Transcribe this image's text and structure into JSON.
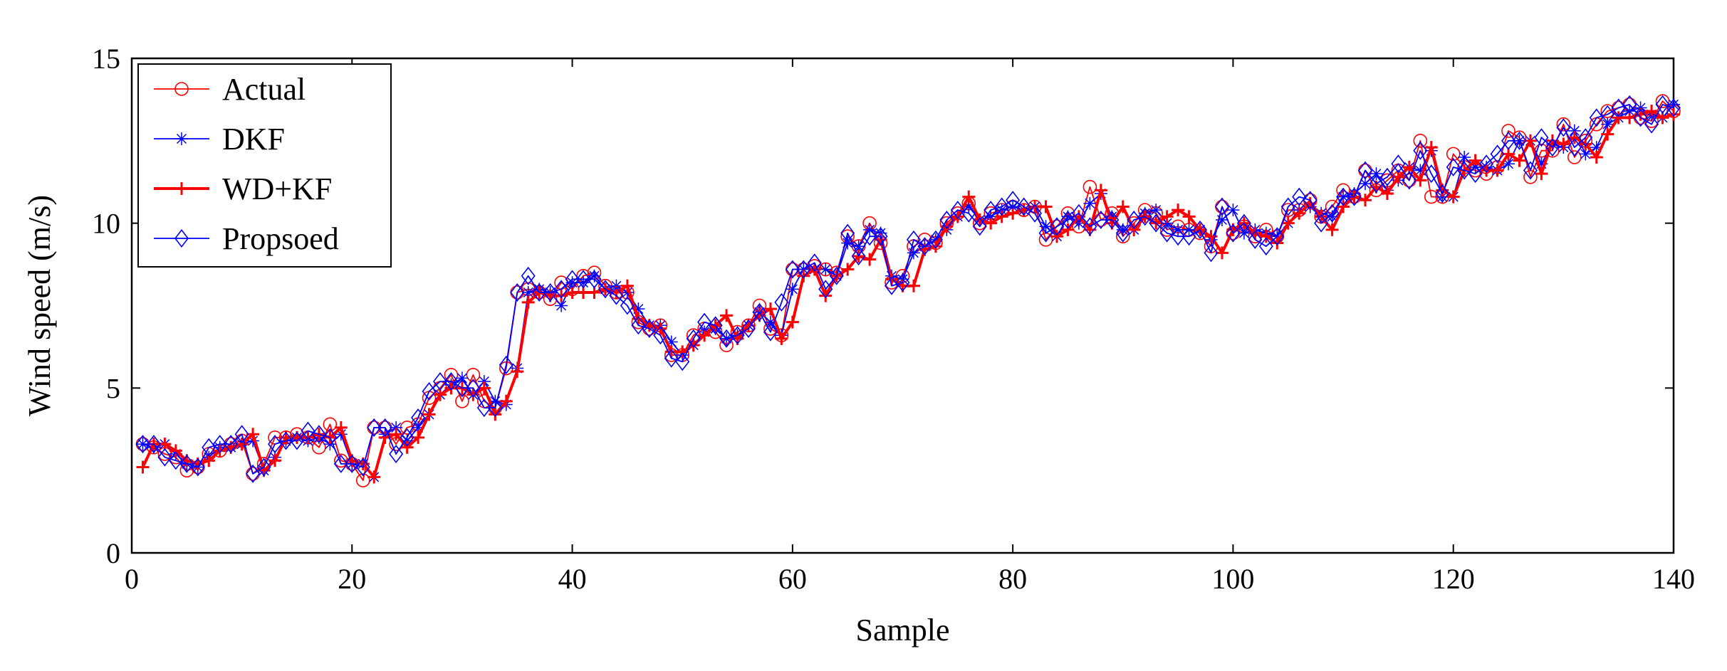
{
  "chart_data": {
    "type": "line",
    "title": "",
    "xlabel": "Sample",
    "ylabel": "Wind speed (m/s)",
    "xlim": [
      0,
      140
    ],
    "ylim": [
      0,
      15
    ],
    "x_ticks": [
      0,
      20,
      40,
      60,
      80,
      100,
      120,
      140
    ],
    "y_ticks": [
      0,
      5,
      10,
      15
    ],
    "grid": false,
    "legend_position": "top-left",
    "x": [
      1,
      2,
      3,
      4,
      5,
      6,
      7,
      8,
      9,
      10,
      11,
      12,
      13,
      14,
      15,
      16,
      17,
      18,
      19,
      20,
      21,
      22,
      23,
      24,
      25,
      26,
      27,
      28,
      29,
      30,
      31,
      32,
      33,
      34,
      35,
      36,
      37,
      38,
      39,
      40,
      41,
      42,
      43,
      44,
      45,
      46,
      47,
      48,
      49,
      50,
      51,
      52,
      53,
      54,
      55,
      56,
      57,
      58,
      59,
      60,
      61,
      62,
      63,
      64,
      65,
      66,
      67,
      68,
      69,
      70,
      71,
      72,
      73,
      74,
      75,
      76,
      77,
      78,
      79,
      80,
      81,
      82,
      83,
      84,
      85,
      86,
      87,
      88,
      89,
      90,
      91,
      92,
      93,
      94,
      95,
      96,
      97,
      98,
      99,
      100,
      101,
      102,
      103,
      104,
      105,
      106,
      107,
      108,
      109,
      110,
      111,
      112,
      113,
      114,
      115,
      116,
      117,
      118,
      119,
      120,
      121,
      122,
      123,
      124,
      125,
      126,
      127,
      128,
      129,
      130,
      131,
      132,
      133,
      134,
      135,
      136,
      137,
      138,
      139,
      140
    ],
    "series": [
      {
        "name": "Actual",
        "color": "#ff0000",
        "marker": "circle",
        "values": [
          3.3,
          3.2,
          3.0,
          2.9,
          2.5,
          2.6,
          3.0,
          3.1,
          3.3,
          3.4,
          2.4,
          2.7,
          3.5,
          3.5,
          3.6,
          3.5,
          3.2,
          3.9,
          2.8,
          2.7,
          2.2,
          3.8,
          3.8,
          3.3,
          3.8,
          3.9,
          4.7,
          5.0,
          5.4,
          4.6,
          5.4,
          4.6,
          4.4,
          5.6,
          7.9,
          8.0,
          7.9,
          7.7,
          8.2,
          8.0,
          8.4,
          8.5,
          8.1,
          7.9,
          7.9,
          7.0,
          6.8,
          6.9,
          6.0,
          6.0,
          6.6,
          6.8,
          6.7,
          6.3,
          6.7,
          6.9,
          7.5,
          6.8,
          6.6,
          8.6,
          8.6,
          8.7,
          8.6,
          8.5,
          9.6,
          9.3,
          10.0,
          9.4,
          8.2,
          8.4,
          9.3,
          9.5,
          9.4,
          10.0,
          10.3,
          10.6,
          10.0,
          10.3,
          10.4,
          10.5,
          10.4,
          10.5,
          9.5,
          9.9,
          10.3,
          9.9,
          11.1,
          10.1,
          10.3,
          9.6,
          10.0,
          10.4,
          10.3,
          9.8,
          9.9,
          9.8,
          9.7,
          9.3,
          10.5,
          9.7,
          9.9,
          9.6,
          9.8,
          9.6,
          10.4,
          10.4,
          10.7,
          10.2,
          10.5,
          11.0,
          10.8,
          11.6,
          11.0,
          11.3,
          11.6,
          11.3,
          12.5,
          10.8,
          10.8,
          12.1,
          11.7,
          11.6,
          11.5,
          11.7,
          12.8,
          12.6,
          11.4,
          12.2,
          12.2,
          13.0,
          12.0,
          12.5,
          13.0,
          13.4,
          13.5,
          13.6,
          13.2,
          13.1,
          13.7,
          13.4
        ]
      },
      {
        "name": "DKF",
        "color": "#0000ff",
        "marker": "asterisk",
        "values": [
          3.3,
          3.2,
          3.3,
          3.0,
          2.7,
          2.6,
          2.9,
          3.2,
          3.2,
          3.3,
          3.4,
          2.5,
          2.9,
          3.4,
          3.5,
          3.4,
          3.5,
          3.3,
          3.6,
          2.7,
          2.7,
          2.3,
          3.6,
          3.8,
          3.4,
          3.8,
          4.2,
          4.8,
          5.1,
          5.3,
          4.8,
          5.2,
          4.6,
          4.5,
          5.6,
          7.9,
          8.0,
          7.9,
          7.5,
          8.2,
          8.2,
          8.4,
          8.0,
          8.1,
          7.9,
          7.4,
          6.9,
          6.9,
          6.4,
          6.0,
          6.3,
          6.7,
          6.8,
          6.5,
          6.6,
          6.9,
          7.3,
          7.0,
          6.6,
          8.0,
          8.6,
          8.6,
          8.6,
          8.4,
          9.4,
          9.3,
          9.8,
          9.7,
          8.4,
          8.3,
          9.1,
          9.3,
          9.5,
          9.8,
          10.2,
          10.5,
          10.1,
          10.2,
          10.4,
          10.5,
          10.4,
          10.5,
          9.9,
          9.6,
          10.2,
          10.0,
          10.6,
          10.9,
          10.2,
          9.8,
          9.8,
          10.3,
          10.4,
          10.0,
          9.8,
          9.8,
          9.8,
          9.5,
          10.1,
          10.4,
          9.7,
          9.8,
          9.7,
          9.6,
          10.0,
          10.4,
          10.5,
          10.3,
          10.2,
          10.8,
          10.9,
          11.2,
          11.5,
          11.0,
          11.3,
          11.7,
          11.6,
          12.2,
          10.8,
          10.8,
          12.0,
          11.7,
          11.7,
          11.6,
          11.8,
          12.5,
          12.5,
          11.8,
          12.4,
          12.3,
          12.8,
          12.1,
          12.3,
          13.0,
          13.2,
          13.4,
          13.5,
          13.3,
          13.2,
          13.6
        ]
      },
      {
        "name": "WD+KF",
        "color": "#ff0000",
        "marker": "plus",
        "values": [
          2.6,
          3.3,
          3.3,
          3.1,
          2.8,
          2.7,
          2.8,
          3.1,
          3.2,
          3.3,
          3.6,
          2.5,
          2.8,
          3.5,
          3.5,
          3.5,
          3.6,
          3.5,
          3.8,
          2.8,
          2.7,
          2.3,
          3.5,
          3.6,
          3.2,
          3.5,
          4.2,
          4.8,
          5.0,
          5.0,
          4.8,
          5.0,
          4.2,
          4.6,
          5.5,
          7.6,
          7.9,
          7.8,
          7.8,
          7.9,
          7.9,
          7.9,
          8.0,
          7.9,
          8.1,
          7.1,
          6.9,
          6.8,
          6.1,
          6.1,
          6.3,
          6.6,
          6.9,
          7.2,
          6.5,
          6.9,
          7.2,
          7.4,
          6.5,
          7.0,
          8.4,
          8.6,
          7.8,
          8.4,
          8.6,
          9.0,
          8.9,
          9.5,
          8.3,
          8.1,
          8.1,
          9.2,
          9.3,
          9.9,
          10.2,
          10.8,
          10.1,
          10.0,
          10.2,
          10.3,
          10.4,
          10.5,
          10.5,
          9.6,
          9.8,
          10.2,
          9.8,
          11.0,
          10.0,
          10.5,
          9.8,
          10.2,
          10.0,
          10.2,
          10.4,
          10.2,
          9.8,
          9.6,
          9.1,
          9.8,
          10.0,
          9.7,
          9.6,
          9.4,
          10.0,
          10.3,
          10.6,
          10.2,
          9.8,
          10.5,
          10.8,
          10.7,
          11.1,
          10.9,
          11.4,
          11.7,
          11.3,
          12.3,
          11.0,
          10.8,
          11.6,
          11.9,
          11.6,
          11.6,
          12.1,
          11.9,
          12.5,
          11.5,
          12.5,
          12.4,
          12.6,
          12.4,
          12.0,
          12.7,
          13.2,
          13.2,
          13.3,
          13.4,
          13.2,
          13.3
        ]
      },
      {
        "name": "Propsoed",
        "color": "#0000ff",
        "marker": "diamond",
        "values": [
          3.3,
          3.3,
          2.9,
          2.8,
          2.7,
          2.6,
          3.2,
          3.3,
          3.3,
          3.6,
          2.4,
          2.6,
          3.3,
          3.4,
          3.4,
          3.7,
          3.6,
          3.5,
          2.7,
          2.7,
          2.6,
          3.8,
          3.8,
          3.0,
          3.5,
          4.1,
          4.9,
          5.2,
          5.2,
          5.0,
          5.0,
          4.4,
          4.4,
          5.7,
          7.9,
          8.4,
          7.9,
          7.9,
          8.0,
          8.3,
          8.3,
          8.3,
          8.0,
          7.8,
          7.5,
          6.9,
          6.8,
          6.6,
          5.9,
          5.8,
          6.5,
          7.0,
          6.9,
          6.5,
          6.6,
          6.8,
          7.3,
          6.7,
          7.6,
          8.6,
          8.6,
          8.8,
          8.0,
          8.4,
          9.7,
          9.0,
          9.6,
          9.6,
          8.1,
          8.2,
          9.5,
          9.3,
          9.5,
          10.1,
          10.4,
          10.3,
          9.9,
          10.4,
          10.5,
          10.7,
          10.5,
          10.3,
          9.7,
          9.9,
          10.1,
          10.3,
          9.9,
          10.1,
          10.1,
          9.7,
          10.1,
          10.2,
          10.0,
          9.7,
          9.6,
          9.6,
          9.8,
          9.1,
          10.5,
          9.7,
          10.0,
          9.5,
          9.3,
          9.6,
          10.5,
          10.8,
          10.7,
          10.0,
          10.3,
          10.8,
          10.8,
          11.6,
          11.2,
          11.4,
          11.8,
          11.3,
          12.2,
          11.5,
          10.9,
          11.7,
          11.6,
          11.5,
          11.8,
          12.1,
          12.5,
          12.5,
          11.6,
          12.6,
          12.3,
          12.9,
          12.3,
          12.6,
          13.2,
          13.3,
          13.5,
          13.6,
          13.2,
          13.0,
          13.6,
          13.5
        ]
      }
    ]
  }
}
